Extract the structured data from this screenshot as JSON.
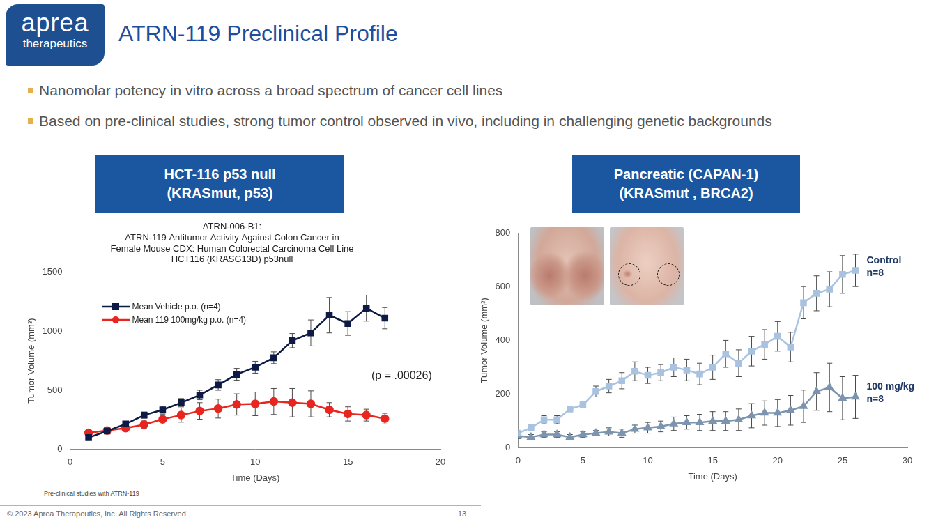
{
  "slide": {
    "logo": [
      "aprea",
      "therapeutics"
    ],
    "title": "ATRN-119 Preclinical Profile",
    "bullets": [
      "Nanomolar potency in vitro across a broad spectrum of cancer cell lines",
      "Based on pre-clinical studies, strong tumor control observed in vivo, including in challenging genetic backgrounds"
    ],
    "panels": [
      [
        "HCT-116 p53 null",
        "(KRASmut, p53)"
      ],
      [
        "Pancreatic (CAPAN-1)",
        "(KRASmut , BRCA2)"
      ]
    ],
    "note": "Pre-clinical studies with ATRN-119",
    "copyright": "© 2023 Aprea Therapeutics, Inc. All Rights Reserved.",
    "page": 13
  },
  "chart_data": [
    {
      "type": "line",
      "title": [
        "ATRN-006-B1:",
        "ATRN-119 Antitumor Activity Against Colon Cancer in",
        "Female Mouse CDX: Human Colorectal Carcinoma Cell Line",
        "HCT116 (KRASG13D) p53null"
      ],
      "x_label": "Time (Days)",
      "y_label": "Tumor Volume (mm³)",
      "x": [
        1,
        2,
        3,
        4,
        5,
        6,
        7,
        8,
        9,
        10,
        11,
        12,
        13,
        14,
        15,
        16,
        17
      ],
      "series": [
        {
          "name": "Mean Vehicle p.o. (n=4)",
          "color": "#0d1a45",
          "marker": "square",
          "values": [
            100,
            155,
            215,
            290,
            335,
            395,
            460,
            545,
            635,
            695,
            775,
            920,
            985,
            1135,
            1065,
            1195,
            1110
          ],
          "errors": [
            15,
            15,
            20,
            25,
            30,
            35,
            40,
            45,
            50,
            50,
            50,
            60,
            110,
            150,
            100,
            110,
            90
          ]
        },
        {
          "name": "Mean 119 100mg/kg p.o. (n=4)",
          "color": "#e8251f",
          "marker": "circle",
          "values": [
            140,
            160,
            180,
            210,
            255,
            290,
            325,
            345,
            380,
            385,
            405,
            395,
            385,
            335,
            300,
            290,
            260
          ],
          "errors": [
            15,
            15,
            20,
            30,
            40,
            60,
            70,
            80,
            90,
            100,
            110,
            120,
            110,
            60,
            60,
            50,
            45
          ]
        }
      ],
      "xlim": [
        0,
        20
      ],
      "xticks": [
        0,
        5,
        10,
        15,
        20
      ],
      "ylim": [
        0,
        1500
      ],
      "yticks": [
        0,
        500,
        1000,
        1500
      ],
      "grid": false,
      "legend": "upper left",
      "annotation": "(p = .00026)"
    },
    {
      "type": "line",
      "x_label": "Time (Days)",
      "y_label": "Tumor Volume (mm³)",
      "x": [
        0,
        1,
        2,
        3,
        4,
        5,
        6,
        7,
        8,
        9,
        10,
        11,
        12,
        13,
        14,
        15,
        16,
        17,
        18,
        19,
        20,
        21,
        22,
        23,
        24,
        25,
        26
      ],
      "series": [
        {
          "name": "Control",
          "n_label": "n=8",
          "color": "#a8c2e0",
          "marker": "square",
          "values": [
            55,
            75,
            105,
            105,
            145,
            160,
            210,
            230,
            250,
            285,
            270,
            280,
            300,
            290,
            275,
            300,
            350,
            315,
            360,
            385,
            415,
            375,
            540,
            575,
            590,
            645,
            660
          ],
          "errors": [
            10,
            10,
            15,
            15,
            10,
            10,
            20,
            25,
            30,
            35,
            30,
            30,
            35,
            40,
            40,
            45,
            50,
            50,
            55,
            55,
            55,
            55,
            60,
            65,
            65,
            70,
            60
          ]
        },
        {
          "name": "100 mg/kg",
          "n_label": "n=8",
          "color": "#7c94ae",
          "marker": "triangle",
          "values": [
            45,
            40,
            50,
            50,
            40,
            50,
            55,
            60,
            55,
            70,
            75,
            80,
            90,
            95,
            95,
            100,
            100,
            105,
            120,
            130,
            130,
            140,
            155,
            210,
            225,
            185,
            190
          ],
          "errors": [
            10,
            10,
            10,
            10,
            10,
            10,
            10,
            15,
            15,
            15,
            20,
            20,
            25,
            25,
            30,
            35,
            35,
            40,
            45,
            45,
            50,
            55,
            60,
            70,
            90,
            80,
            80
          ]
        }
      ],
      "xlim": [
        0,
        30
      ],
      "xticks": [
        0,
        5,
        10,
        15,
        20,
        25,
        30
      ],
      "ylim": [
        0,
        800
      ],
      "yticks": [
        0,
        200,
        400,
        600,
        800
      ],
      "grid": false
    }
  ]
}
